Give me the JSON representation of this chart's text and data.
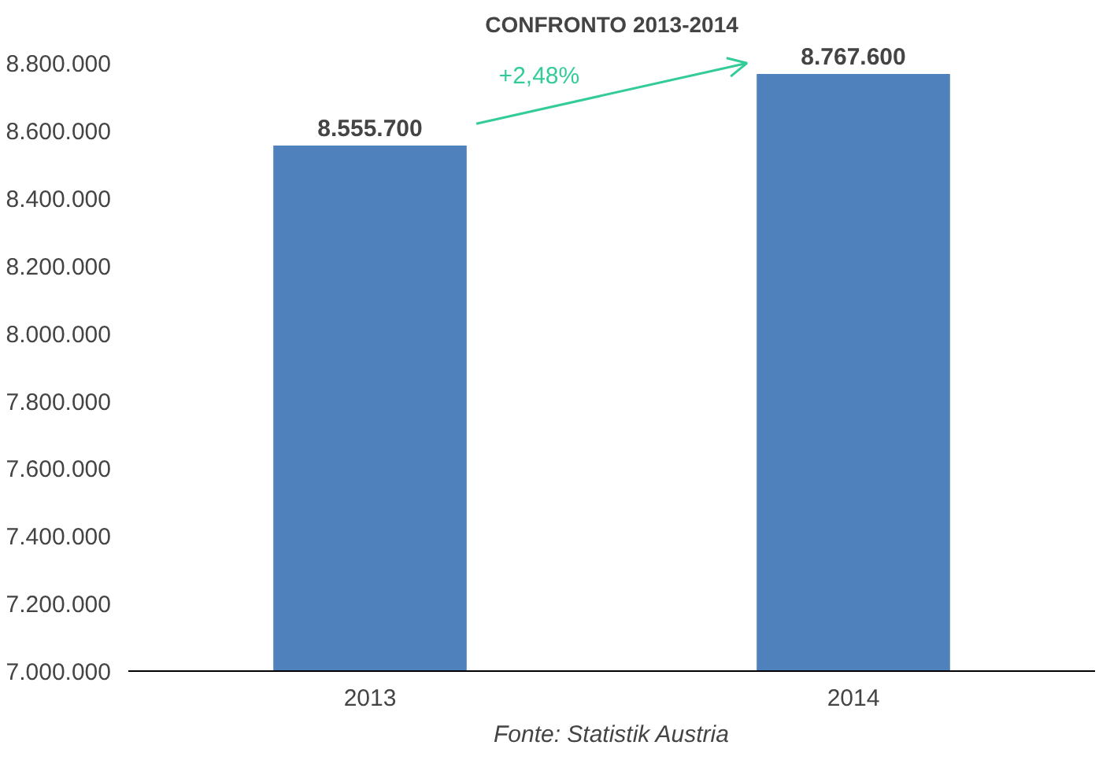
{
  "chart_data": {
    "type": "bar",
    "title": "CONFRONTO 2013-2014",
    "categories": [
      "2013",
      "2014"
    ],
    "values": [
      8555700,
      8767600
    ],
    "value_labels": [
      "8.555.700",
      "8.767.600"
    ],
    "color": "#4f81bd",
    "ylim": [
      7000000,
      8800000
    ],
    "yticks": [
      {
        "value": 7000000,
        "label": "7.000.000"
      },
      {
        "value": 7200000,
        "label": "7.200.000"
      },
      {
        "value": 7400000,
        "label": "7.400.000"
      },
      {
        "value": 7600000,
        "label": "7.600.000"
      },
      {
        "value": 7800000,
        "label": "7.800.000"
      },
      {
        "value": 8000000,
        "label": "8.000.000"
      },
      {
        "value": 8200000,
        "label": "8.200.000"
      },
      {
        "value": 8400000,
        "label": "8.400.000"
      },
      {
        "value": 8600000,
        "label": "8.600.000"
      },
      {
        "value": 8800000,
        "label": "8.800.000"
      }
    ],
    "annotations": [
      "+2,48%",
      "Fonte: Statistik Austria"
    ],
    "grid": false
  }
}
